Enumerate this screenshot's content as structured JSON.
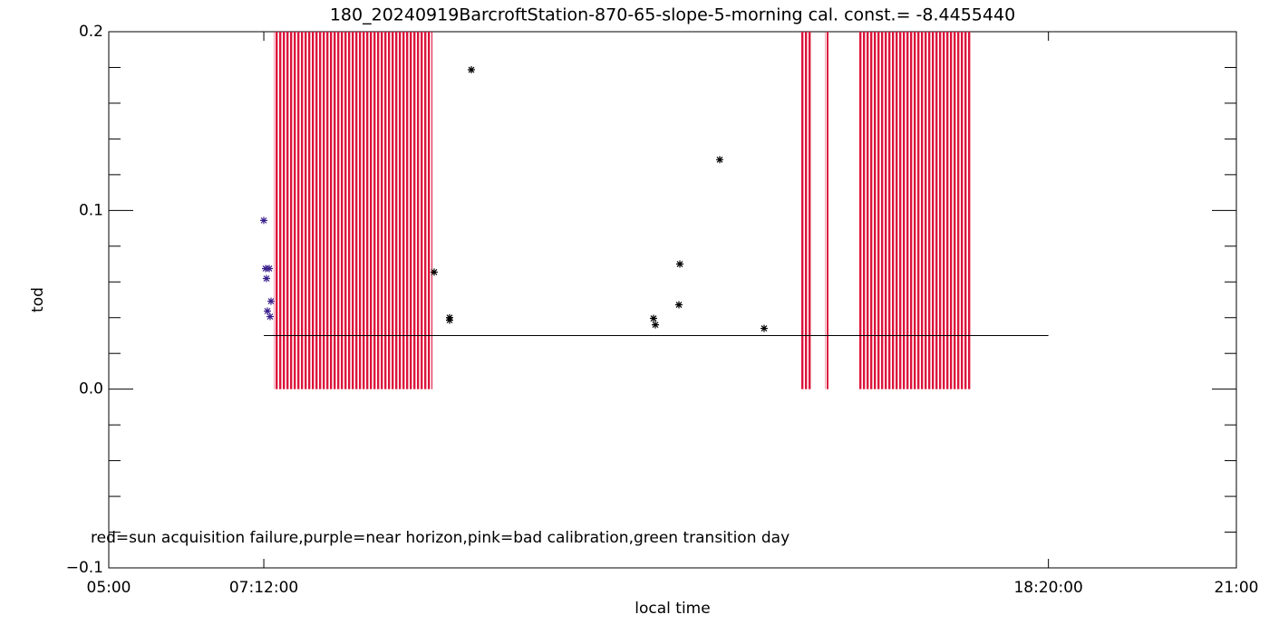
{
  "chart_data": {
    "type": "scatter",
    "title": "180_20240919BarcroftStation-870-65-slope-5-morning cal. const.= -8.4455440",
    "x_label": "local time",
    "y_label": "tod",
    "annotation": "red=sun acquisition failure,purple=near horizon,pink=bad calibration,green transition day",
    "xlim": [
      5,
      21
    ],
    "ylim": [
      -0.1,
      0.2
    ],
    "xticks": [
      {
        "value": 5,
        "label": "05:00"
      },
      {
        "value": 7.2,
        "label": "07:12:00"
      },
      {
        "value": 18.3333,
        "label": "18:20:00"
      },
      {
        "value": 21,
        "label": "21:00"
      }
    ],
    "yticks": [
      {
        "value": -0.1,
        "label": "−0.1"
      },
      {
        "value": 0,
        "label": "0.0"
      },
      0.1,
      0.2
    ],
    "y_minor_ticks": [
      -0.08,
      -0.06,
      -0.04,
      -0.02,
      0.02,
      0.04,
      0.06,
      0.08,
      0.12,
      0.14,
      0.16,
      0.18
    ],
    "failure_color": "#dc143c",
    "failure_spans": [
      {
        "x0": 7.341,
        "x1": 9.592,
        "value": 0.2
      },
      {
        "x0": 14.813,
        "x1": 14.981,
        "value": 0.2
      },
      {
        "x0": 15.161,
        "x1": 15.212,
        "value": 0.2
      },
      {
        "x0": 15.637,
        "x1": 17.232,
        "value": 0.2
      }
    ],
    "reference_line": {
      "x": [
        7.2,
        18.3333
      ],
      "values": [
        0.03,
        0.03
      ],
      "color": "#000000"
    },
    "series": [
      {
        "color": "#3a1f8c",
        "x": [
          7.199,
          7.225,
          7.277,
          7.238,
          7.302,
          7.251,
          7.289
        ],
        "values": [
          0.0944,
          0.0675,
          0.0675,
          0.0619,
          0.0492,
          0.0437,
          0.0406
        ]
      },
      {
        "color": "#000000",
        "x": [
          9.617,
          9.836,
          9.836,
          10.145,
          12.73,
          12.756,
          13.103,
          13.09,
          13.669,
          14.299
        ],
        "values": [
          0.0655,
          0.04,
          0.0386,
          0.1787,
          0.0396,
          0.036,
          0.07,
          0.0472,
          0.1284,
          0.034
        ]
      }
    ]
  }
}
